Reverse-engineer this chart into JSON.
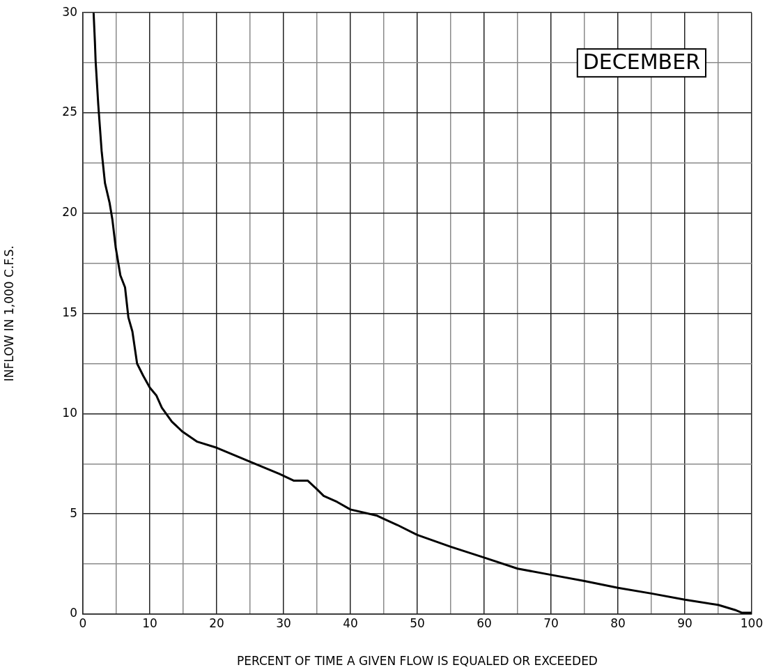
{
  "chart_data": {
    "type": "line",
    "title": "DECEMBER",
    "xlabel": "PERCENT OF TIME A GIVEN FLOW IS EQUALED OR EXCEEDED",
    "ylabel": "INFLOW IN 1,000 C.F.S.",
    "x": [
      1.6,
      1.8,
      1.9,
      2.3,
      2.8,
      3.3,
      4.0,
      4.4,
      4.9,
      5.6,
      6.3,
      6.8,
      7.4,
      8.1,
      9.0,
      10,
      11,
      11.8,
      13.3,
      14.9,
      17.1,
      20,
      25,
      29.4,
      31.5,
      33.6,
      35,
      36,
      38,
      40,
      44,
      45,
      47,
      50,
      55,
      60,
      65,
      70,
      75,
      80,
      85,
      90,
      95,
      97.5,
      98.5,
      100,
      100
    ],
    "values": [
      30,
      28.5,
      27.6,
      25.4,
      23.1,
      21.5,
      20.5,
      19.7,
      18.3,
      16.9,
      16.3,
      14.8,
      14.1,
      12.5,
      11.9,
      11.3,
      10.9,
      10.3,
      9.6,
      9.1,
      8.6,
      8.3,
      7.6,
      6.99,
      6.66,
      6.66,
      6.23,
      5.9,
      5.6,
      5.22,
      4.91,
      4.75,
      4.45,
      3.95,
      3.36,
      2.82,
      2.27,
      1.96,
      1.65,
      1.31,
      1.03,
      0.72,
      0.46,
      0.21,
      0.07,
      0.07,
      0
    ],
    "color": "#000000",
    "xlim": [
      0,
      100
    ],
    "ylim": [
      0,
      30
    ],
    "xticks": [
      0,
      {
        "value": 5,
        "label": null
      },
      10,
      {
        "value": 15,
        "label": null
      },
      20,
      {
        "value": 25,
        "label": null
      },
      30,
      {
        "value": 35,
        "label": null
      },
      40,
      {
        "value": 45,
        "label": null
      },
      50,
      {
        "value": 55,
        "label": null
      },
      60,
      {
        "value": 65,
        "label": null
      },
      70,
      {
        "value": 75,
        "label": null
      },
      80,
      {
        "value": 85,
        "label": null
      },
      90,
      {
        "value": 95,
        "label": null
      },
      100
    ],
    "yticks": [
      0,
      {
        "value": 2.5,
        "label": null
      },
      5,
      {
        "value": 7.5,
        "label": null
      },
      10,
      {
        "value": 12.5,
        "label": null
      },
      15,
      {
        "value": 17.5,
        "label": null
      },
      20,
      {
        "value": 22.5,
        "label": null
      },
      25,
      {
        "value": 27.5,
        "label": null
      },
      30
    ],
    "grid": true
  }
}
